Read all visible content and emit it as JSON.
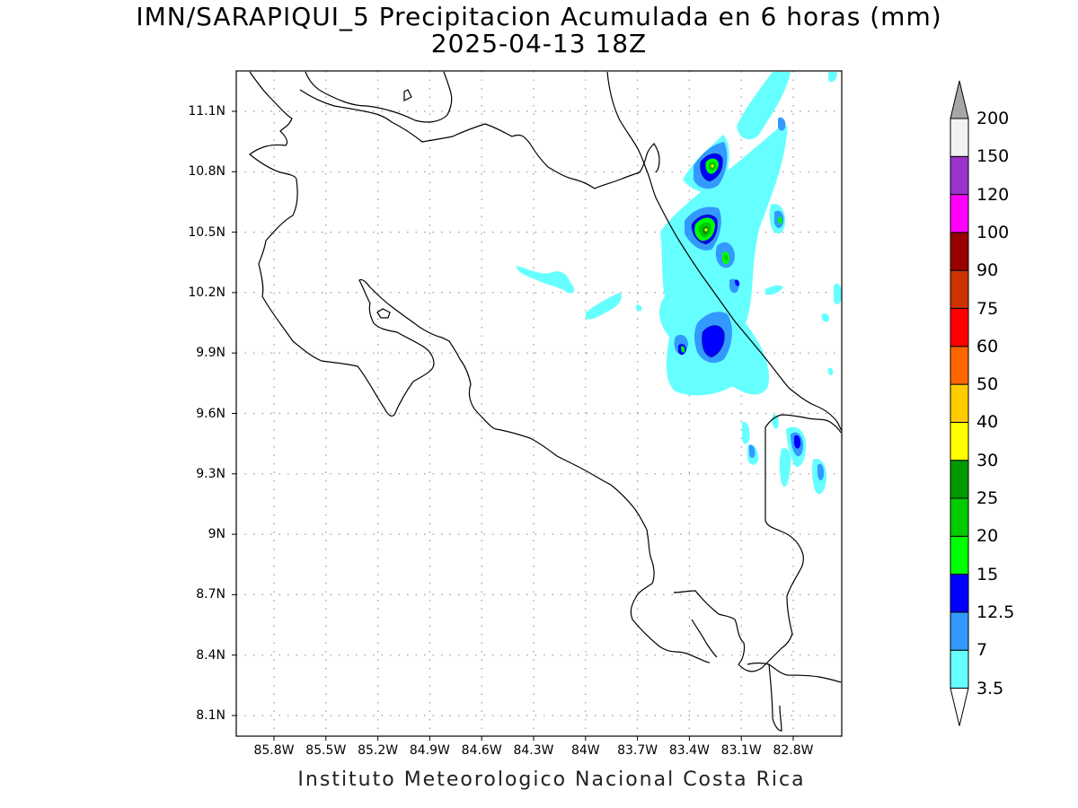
{
  "title": "IMN/SARAPIQUI_5 Precipitacion Acumulada en 6 horas (mm)",
  "subtitle": "2025-04-13 18Z",
  "credit": "Instituto Meteorologico Nacional Costa Rica",
  "map": {
    "lon_range": [
      -86.1,
      -82.5
    ],
    "lat_range": [
      7.99,
      11.31
    ],
    "lat_ticks": [
      "11.1N",
      "10.8N",
      "10.5N",
      "10.2N",
      "9.9N",
      "9.6N",
      "9.3N",
      "9N",
      "8.7N",
      "8.4N",
      "8.1N"
    ],
    "lon_ticks": [
      "85.8W",
      "85.5W",
      "85.2W",
      "84.9W",
      "84.6W",
      "84.3W",
      "84W",
      "83.7W",
      "83.4W",
      "83.1W",
      "82.8W"
    ],
    "grid": true,
    "coastline_color": "#000000"
  },
  "colorbar": {
    "levels": [
      "3.5",
      "7",
      "12.5",
      "15",
      "20",
      "25",
      "30",
      "40",
      "50",
      "60",
      "75",
      "90",
      "100",
      "120",
      "150",
      "200"
    ],
    "colors": [
      "#66ffff",
      "#3399ff",
      "#0000ff",
      "#00ff00",
      "#00cc00",
      "#009900",
      "#ffff00",
      "#ffcc00",
      "#ff6600",
      "#ff0000",
      "#cc3300",
      "#990000",
      "#ff00ff",
      "#9933cc",
      "#f2f2f2",
      "#a6a6a6"
    ],
    "below_color": "#ffffff",
    "above_color": "#a6a6a6"
  }
}
